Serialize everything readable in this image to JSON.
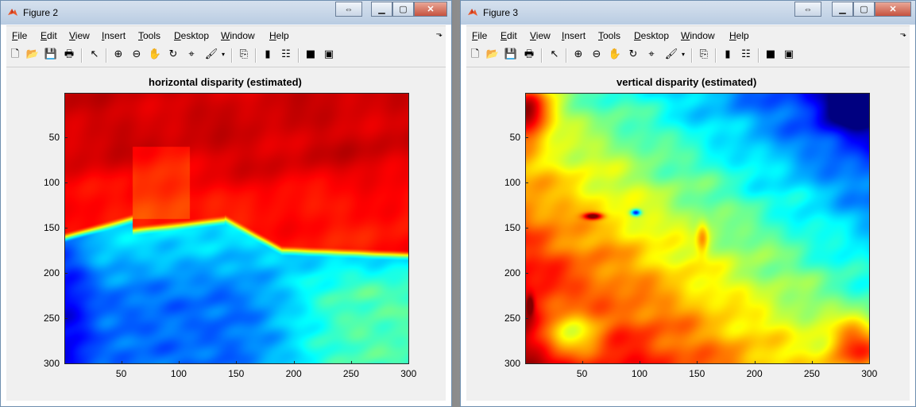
{
  "figure2": {
    "title": "Figure 2",
    "menu": [
      "File",
      "Edit",
      "View",
      "Insert",
      "Tools",
      "Desktop",
      "Window",
      "Help"
    ],
    "plot_title": "horizontal disparity (estimated)",
    "y_ticks": [
      "50",
      "100",
      "150",
      "200",
      "250",
      "300"
    ],
    "x_ticks": [
      "50",
      "100",
      "150",
      "200",
      "250",
      "300"
    ]
  },
  "figure3": {
    "title": "Figure 3",
    "menu": [
      "File",
      "Edit",
      "View",
      "Insert",
      "Tools",
      "Desktop",
      "Window",
      "Help"
    ],
    "plot_title": "vertical disparity (estimated)",
    "y_ticks": [
      "50",
      "100",
      "150",
      "200",
      "250",
      "300"
    ],
    "x_ticks": [
      "50",
      "100",
      "150",
      "200",
      "250",
      "300"
    ]
  },
  "toolbar_icons": [
    "new-figure-icon",
    "open-file-icon",
    "save-icon",
    "print-icon",
    "pointer-icon",
    "zoom-in-icon",
    "zoom-out-icon",
    "pan-icon",
    "rotate-3d-icon",
    "data-cursor-icon",
    "brush-icon",
    "link-plot-icon",
    "colorbar-icon",
    "legend-icon",
    "hide-plot-tools-icon",
    "show-plot-tools-icon"
  ],
  "colormap": "jet"
}
